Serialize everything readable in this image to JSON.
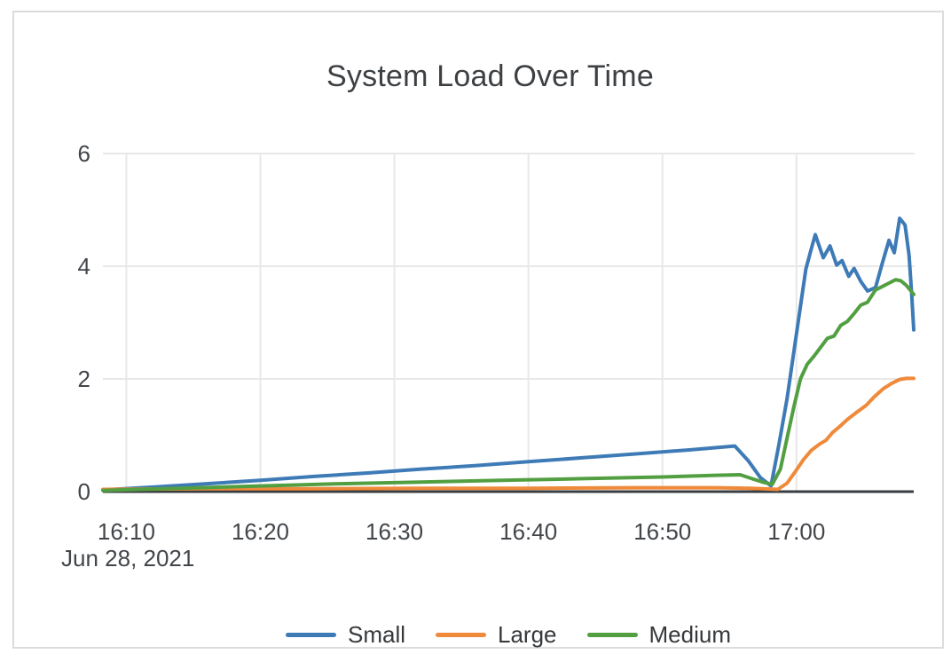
{
  "chart_data": {
    "type": "line",
    "title": "System Load Over Time",
    "x_axis": {
      "date_label": "Jun 28, 2021",
      "tick_labels": [
        "16:10",
        "16:20",
        "16:30",
        "16:40",
        "16:50",
        "17:00"
      ],
      "tick_minutes": [
        10,
        20,
        30,
        40,
        50,
        60
      ],
      "domain_minutes": [
        8.25,
        68.75
      ],
      "unit": "time of day (HH:MM), minutes after 16:00 in data points"
    },
    "y_axis": {
      "range": [
        0,
        6
      ],
      "ticks": [
        0,
        2,
        4,
        6
      ],
      "tick_labels": [
        "0",
        "2",
        "4",
        "6"
      ]
    },
    "grid": true,
    "legend_position": "bottom-center",
    "colors": {
      "grid": "#e8e8e8",
      "axis_line": "#3a3d40",
      "text": "#42464a",
      "title_text": "#3d4043",
      "card_border": "#dcdcdc"
    },
    "series": [
      {
        "name": "Small",
        "color": "#3e7bb6",
        "points": [
          [
            8.25,
            0.03
          ],
          [
            12,
            0.08
          ],
          [
            16,
            0.14
          ],
          [
            20,
            0.2
          ],
          [
            24,
            0.27
          ],
          [
            28,
            0.33
          ],
          [
            32,
            0.4
          ],
          [
            36,
            0.46
          ],
          [
            40,
            0.53
          ],
          [
            44,
            0.6
          ],
          [
            48,
            0.67
          ],
          [
            52,
            0.74
          ],
          [
            55.4,
            0.81
          ],
          [
            56.4,
            0.55
          ],
          [
            57.3,
            0.25
          ],
          [
            58.1,
            0.1
          ],
          [
            58.7,
            0.85
          ],
          [
            59.3,
            1.65
          ],
          [
            60,
            2.8
          ],
          [
            60.7,
            3.95
          ],
          [
            61.1,
            4.3
          ],
          [
            61.4,
            4.56
          ],
          [
            62,
            4.15
          ],
          [
            62.5,
            4.36
          ],
          [
            63,
            4.02
          ],
          [
            63.4,
            4.1
          ],
          [
            63.9,
            3.82
          ],
          [
            64.3,
            3.96
          ],
          [
            64.8,
            3.73
          ],
          [
            65.3,
            3.56
          ],
          [
            65.9,
            3.62
          ],
          [
            66.4,
            4.05
          ],
          [
            66.9,
            4.46
          ],
          [
            67.3,
            4.24
          ],
          [
            67.7,
            4.85
          ],
          [
            68.1,
            4.73
          ],
          [
            68.4,
            4.2
          ],
          [
            68.6,
            3.5
          ],
          [
            68.75,
            2.87
          ]
        ]
      },
      {
        "name": "Large",
        "color": "#ef8a3b",
        "points": [
          [
            8.25,
            0.04
          ],
          [
            16,
            0.05
          ],
          [
            24,
            0.05
          ],
          [
            32,
            0.06
          ],
          [
            40,
            0.06
          ],
          [
            48,
            0.07
          ],
          [
            54,
            0.07
          ],
          [
            56.5,
            0.06
          ],
          [
            57.5,
            0.05
          ],
          [
            58.6,
            0.04
          ],
          [
            59.3,
            0.15
          ],
          [
            59.9,
            0.35
          ],
          [
            60.5,
            0.56
          ],
          [
            61.1,
            0.73
          ],
          [
            61.7,
            0.84
          ],
          [
            62.2,
            0.91
          ],
          [
            62.7,
            1.05
          ],
          [
            63.2,
            1.15
          ],
          [
            63.8,
            1.28
          ],
          [
            64.5,
            1.41
          ],
          [
            65.2,
            1.53
          ],
          [
            65.8,
            1.68
          ],
          [
            66.5,
            1.83
          ],
          [
            67.1,
            1.92
          ],
          [
            67.7,
            1.99
          ],
          [
            68.2,
            2.01
          ],
          [
            68.75,
            2.01
          ]
        ]
      },
      {
        "name": "Medium",
        "color": "#529f42",
        "points": [
          [
            8.25,
            0.02
          ],
          [
            14,
            0.06
          ],
          [
            20,
            0.1
          ],
          [
            26,
            0.14
          ],
          [
            32,
            0.17
          ],
          [
            38,
            0.2
          ],
          [
            44,
            0.23
          ],
          [
            50,
            0.26
          ],
          [
            54,
            0.29
          ],
          [
            55.8,
            0.3
          ],
          [
            56.8,
            0.22
          ],
          [
            57.6,
            0.16
          ],
          [
            58.2,
            0.13
          ],
          [
            58.8,
            0.4
          ],
          [
            59.3,
            0.95
          ],
          [
            59.8,
            1.5
          ],
          [
            60.3,
            2.0
          ],
          [
            60.8,
            2.26
          ],
          [
            61.3,
            2.4
          ],
          [
            61.8,
            2.56
          ],
          [
            62.3,
            2.72
          ],
          [
            62.8,
            2.76
          ],
          [
            63.3,
            2.95
          ],
          [
            63.8,
            3.02
          ],
          [
            64.3,
            3.16
          ],
          [
            64.8,
            3.31
          ],
          [
            65.3,
            3.36
          ],
          [
            65.9,
            3.58
          ],
          [
            66.4,
            3.64
          ],
          [
            66.9,
            3.7
          ],
          [
            67.4,
            3.76
          ],
          [
            67.8,
            3.74
          ],
          [
            68.2,
            3.66
          ],
          [
            68.75,
            3.5
          ]
        ]
      }
    ]
  }
}
